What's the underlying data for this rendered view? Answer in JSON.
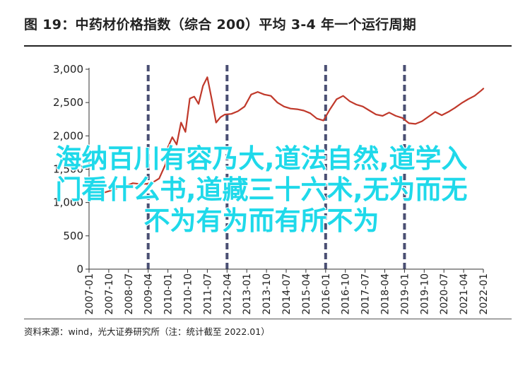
{
  "header": {
    "title": "图 19：中药材价格指数（综合 200）平均 3-4 年一个运行周期"
  },
  "footer": {
    "source": "资料来源：wind，光大证券研究所（注：统计截至 2022.01）"
  },
  "overlay": {
    "lines": [
      "海纳百川有容乃大,道法自然,道学入",
      "门看什么书,道藏三十六术,无为而无",
      "不为有为而有所不为"
    ]
  },
  "colors": {
    "series": "#c0392b",
    "cycle_markers": "#4a4f73",
    "overlay_text": "#1fd9ea"
  },
  "chart_data": {
    "type": "line",
    "title": "",
    "xlabel": "",
    "ylabel": "",
    "ylim": [
      0,
      3000
    ],
    "yticks": [
      0,
      500,
      1000,
      1500,
      2000,
      2500,
      3000
    ],
    "ytick_labels": [
      "0",
      "500",
      "1,000",
      "1,500",
      "2,000",
      "2,500",
      "3,000"
    ],
    "xlim": [
      "2007-01",
      "2022-01"
    ],
    "xtick_labels": [
      "2007-01",
      "2007-10",
      "2008-07",
      "2009-04",
      "2010-01",
      "2010-10",
      "2011-07",
      "2012-04",
      "2013-01",
      "2013-10",
      "2014-07",
      "2015-04",
      "2016-01",
      "2016-10",
      "2017-07",
      "2018-04",
      "2019-01",
      "2019-10",
      "2020-07",
      "2021-04",
      "2022-01"
    ],
    "grid": false,
    "legend": "none",
    "cycle_markers": [
      "2009-04",
      "2012-04",
      "2016-01",
      "2019-01"
    ],
    "series": [
      {
        "x": [
          "2007-01",
          "2007-03",
          "2007-06",
          "2007-09",
          "2007-12",
          "2008-03",
          "2008-06",
          "2008-09",
          "2008-12",
          "2009-03",
          "2009-06",
          "2009-09",
          "2009-12",
          "2010-01",
          "2010-03",
          "2010-05",
          "2010-07",
          "2010-09",
          "2010-11",
          "2011-01",
          "2011-03",
          "2011-05",
          "2011-07",
          "2011-09",
          "2011-11",
          "2012-01",
          "2012-03",
          "2012-06",
          "2012-09",
          "2012-12",
          "2013-03",
          "2013-06",
          "2013-09",
          "2013-12",
          "2014-03",
          "2014-06",
          "2014-09",
          "2014-12",
          "2015-03",
          "2015-06",
          "2015-09",
          "2015-12",
          "2016-03",
          "2016-06",
          "2016-09",
          "2016-12",
          "2017-03",
          "2017-06",
          "2017-09",
          "2017-12",
          "2018-03",
          "2018-06",
          "2018-09",
          "2018-12",
          "2019-03",
          "2019-06",
          "2019-09",
          "2019-12",
          "2020-03",
          "2020-06",
          "2020-09",
          "2020-12",
          "2021-03",
          "2021-06",
          "2021-09",
          "2021-12",
          "2022-01"
        ],
        "values": [
          1090,
          1120,
          1130,
          1160,
          1190,
          1230,
          1250,
          1290,
          1280,
          1280,
          1300,
          1360,
          1580,
          1830,
          1980,
          1870,
          2200,
          2060,
          2560,
          2590,
          2480,
          2750,
          2880,
          2550,
          2200,
          2280,
          2320,
          2330,
          2370,
          2440,
          2620,
          2660,
          2620,
          2600,
          2500,
          2440,
          2410,
          2400,
          2380,
          2340,
          2260,
          2230,
          2400,
          2550,
          2600,
          2520,
          2470,
          2440,
          2380,
          2320,
          2300,
          2350,
          2300,
          2270,
          2190,
          2180,
          2220,
          2290,
          2360,
          2310,
          2360,
          2420,
          2490,
          2550,
          2600,
          2680,
          2710
        ]
      }
    ]
  }
}
